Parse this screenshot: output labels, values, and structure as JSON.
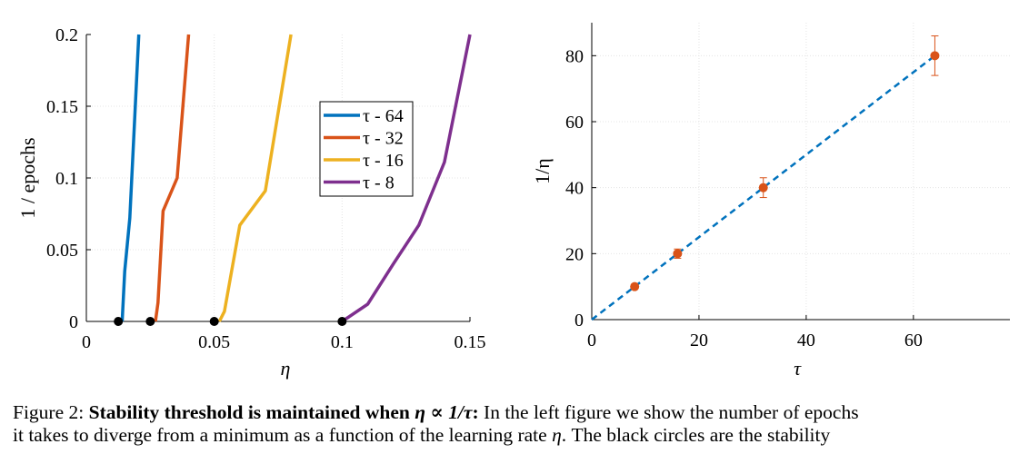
{
  "chart_data": [
    {
      "type": "line",
      "xlabel": "η",
      "ylabel": "1 / epochs",
      "xlim": [
        0,
        0.15
      ],
      "ylim": [
        0,
        0.2
      ],
      "xticks": [
        "0",
        "0.05",
        "0.1",
        "0.15"
      ],
      "yticks": [
        "0",
        "0.05",
        "0.1",
        "0.15",
        "0.2"
      ],
      "grid": true,
      "legend_position": "upper-right",
      "series": [
        {
          "name": "τ - 64",
          "color": "#0072BD",
          "points": [
            [
              0.014,
              0
            ],
            [
              0.015,
              0.035
            ],
            [
              0.017,
              0.072
            ],
            [
              0.0205,
              0.2
            ]
          ]
        },
        {
          "name": "τ - 32",
          "color": "#D95319",
          "points": [
            [
              0.027,
              0
            ],
            [
              0.028,
              0.013
            ],
            [
              0.03,
              0.077
            ],
            [
              0.0355,
              0.1
            ],
            [
              0.04,
              0.2
            ]
          ]
        },
        {
          "name": "τ - 16",
          "color": "#EDB120",
          "points": [
            [
              0.052,
              0
            ],
            [
              0.054,
              0.007
            ],
            [
              0.06,
              0.067
            ],
            [
              0.07,
              0.091
            ],
            [
              0.08,
              0.2
            ]
          ]
        },
        {
          "name": "τ - 8",
          "color": "#7E2F8E",
          "points": [
            [
              0.1,
              0
            ],
            [
              0.11,
              0.012
            ],
            [
              0.12,
              0.04
            ],
            [
              0.13,
              0.067
            ],
            [
              0.14,
              0.111
            ],
            [
              0.15,
              0.2
            ]
          ]
        }
      ],
      "threshold_points": [
        [
          0.0125,
          0
        ],
        [
          0.025,
          0
        ],
        [
          0.05,
          0
        ],
        [
          0.1,
          0
        ]
      ],
      "threshold_color": "#000000"
    },
    {
      "type": "scatter",
      "xlabel": "τ",
      "ylabel": "1/η",
      "xlim": [
        0,
        78
      ],
      "ylim": [
        0,
        90
      ],
      "xticks": [
        "0",
        "20",
        "40",
        "60"
      ],
      "yticks": [
        "0",
        "20",
        "40",
        "60",
        "80"
      ],
      "grid": true,
      "points": [
        {
          "x": 8,
          "y": 10,
          "err": 0.6
        },
        {
          "x": 16,
          "y": 20,
          "err": 1.4
        },
        {
          "x": 32,
          "y": 40,
          "err": 3
        },
        {
          "x": 64,
          "y": 80,
          "err": 6
        }
      ],
      "point_color": "#D95319",
      "fit_line": {
        "x": [
          0,
          64
        ],
        "y": [
          0,
          80
        ],
        "color": "#0072BD",
        "style": "dashed"
      }
    }
  ],
  "caption": {
    "label": "Figure 2:",
    "bold_before": "Stability threshold is maintained when ",
    "math": "η ∝ 1/τ",
    "bold_after": ":",
    "text1": " In the left figure we show the number of epochs",
    "line2_before": "it takes to diverge from a minimum as a function of the learning rate ",
    "line2_var": "η",
    "line2_after": ".  The black circles are the stability"
  }
}
